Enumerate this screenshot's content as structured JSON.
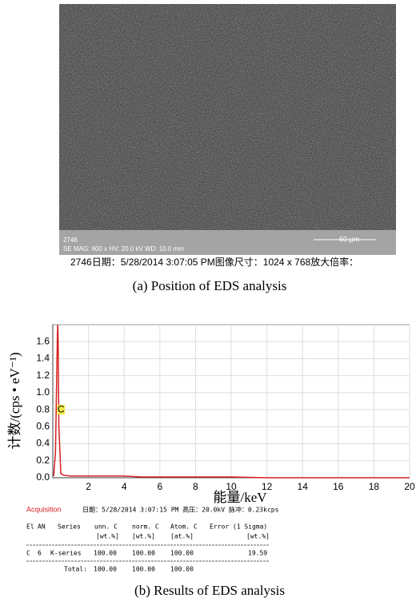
{
  "sem_image": {
    "id": "2746",
    "info": "SE  MAG: 600 x  HV: 20.0 kV  WD: 10.0 mm",
    "scale": "60 μm",
    "caption_line": "2746日期：5/28/2014 3:07:05 PM图像尺寸：1024 x 768放大倍率：",
    "caption": "(a) Position of EDS analysis"
  },
  "chart_data": {
    "type": "line",
    "x_label": "能量/keV",
    "y_label": "计数/(cps • eV⁻¹)",
    "x": [
      0.05,
      0.15,
      0.22,
      0.26,
      0.28,
      0.3,
      0.34,
      0.45,
      0.6,
      1,
      1.5,
      2,
      3,
      4,
      5,
      6,
      7,
      8,
      9,
      10,
      12,
      14,
      16,
      18,
      20
    ],
    "series": [
      {
        "name": "C",
        "color": "#d62020",
        "values": [
          0.02,
          0.3,
          1.2,
          1.7,
          1.8,
          1.6,
          0.6,
          0.05,
          0.03,
          0.02,
          0.02,
          0.02,
          0.02,
          0.02,
          0.01,
          0.01,
          0.01,
          0.01,
          0.01,
          0.01,
          0.0,
          0.0,
          0.0,
          0.0,
          0.0
        ]
      }
    ],
    "annotation": {
      "label": "C",
      "x": 0.28,
      "y": 0.8
    },
    "xlim": [
      0,
      20
    ],
    "xticks": [
      2,
      4,
      6,
      8,
      10,
      12,
      14,
      16,
      18,
      20
    ],
    "ylim": [
      0,
      1.8
    ],
    "yticks": [
      {
        "value": 0,
        "label": "0.0"
      },
      0.2,
      0.4,
      0.6,
      0.8,
      {
        "value": 1,
        "label": "1.0"
      },
      1.2,
      1.4,
      1.6
    ],
    "grid": true
  },
  "results": {
    "acquisition": "Acquisition",
    "meta": "日期：5/28/2014 3:07:15 PM  高压：20.0kV  脉冲：0.23kcps",
    "header": [
      "El",
      "AN",
      "Series",
      "unn. C",
      "norm. C",
      "Atom. C",
      "Error (1 Sigma)"
    ],
    "units": [
      "[wt.%]",
      "[wt.%]",
      "[at.%]",
      "[wt.%]"
    ],
    "rows": [
      [
        "C",
        "6",
        "K-series",
        "100.00",
        "100.00",
        "100.00",
        "19.59"
      ]
    ],
    "total": [
      "Total:",
      "100.00",
      "100.00",
      "100.00"
    ],
    "caption": "(b) Results of EDS analysis"
  }
}
